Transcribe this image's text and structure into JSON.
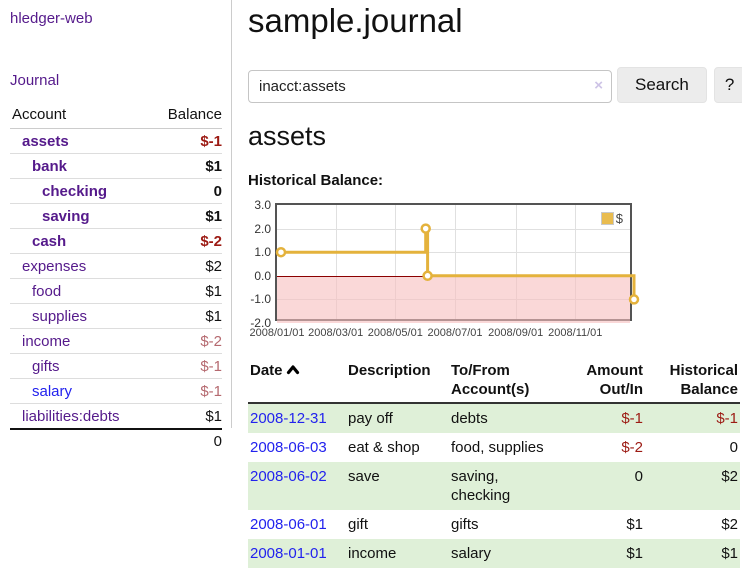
{
  "appearance": {
    "link_purple": "#551a8b",
    "link_blue": "#2222ee",
    "negative_strong": "#9c1a13",
    "negative_soft": "#b5696f",
    "row_stripe_green": "#dff0d8",
    "series_gold": "#e4b23c",
    "negative_region_pink": "#f7bebe",
    "zero_line_red": "#8b0000"
  },
  "sidebar": {
    "brand": "hledger-web",
    "journal_label": "Journal",
    "accounts_table": {
      "headers": [
        "Account",
        "Balance"
      ],
      "rows": [
        {
          "name": "assets",
          "indent": 1,
          "balance": "$-1",
          "bold": true,
          "balance_tone": "neg-strong",
          "link": "purple"
        },
        {
          "name": "bank",
          "indent": 2,
          "balance": "$1",
          "bold": true,
          "balance_tone": "normal",
          "link": "purple"
        },
        {
          "name": "checking",
          "indent": 3,
          "balance": "0",
          "bold": true,
          "balance_tone": "normal",
          "link": "purple"
        },
        {
          "name": "saving",
          "indent": 3,
          "balance": "$1",
          "bold": true,
          "balance_tone": "normal",
          "link": "purple"
        },
        {
          "name": "cash",
          "indent": 2,
          "balance": "$-2",
          "bold": true,
          "balance_tone": "neg-strong",
          "link": "purple"
        },
        {
          "name": "expenses",
          "indent": 1,
          "balance": "$2",
          "bold": false,
          "balance_tone": "normal",
          "link": "purple"
        },
        {
          "name": "food",
          "indent": 2,
          "balance": "$1",
          "bold": false,
          "balance_tone": "normal",
          "link": "purple"
        },
        {
          "name": "supplies",
          "indent": 2,
          "balance": "$1",
          "bold": false,
          "balance_tone": "normal",
          "link": "purple"
        },
        {
          "name": "income",
          "indent": 1,
          "balance": "$-2",
          "bold": false,
          "balance_tone": "neg-soft",
          "link": "purple"
        },
        {
          "name": "gifts",
          "indent": 2,
          "balance": "$-1",
          "bold": false,
          "balance_tone": "neg-soft",
          "link": "purple"
        },
        {
          "name": "salary",
          "indent": 2,
          "balance": "$-1",
          "bold": false,
          "balance_tone": "neg-soft",
          "link": "blue"
        },
        {
          "name": "liabilities:debts",
          "indent": 1,
          "balance": "$1",
          "bold": false,
          "balance_tone": "normal",
          "link": "purple"
        }
      ],
      "total": "0"
    }
  },
  "header": {
    "title": "sample.journal"
  },
  "search": {
    "value": "inacct:assets",
    "clear_icon": "×",
    "button_label": "Search",
    "help_label": "?"
  },
  "account_page": {
    "heading": "assets",
    "chart_label": "Historical Balance:"
  },
  "chart_data": {
    "type": "line",
    "step": true,
    "title": "Historical Balance",
    "series": [
      {
        "name": "$",
        "color": "#e4b23c",
        "points": [
          [
            "2008-01-01",
            1.0
          ],
          [
            "2008-06-01",
            2.0
          ],
          [
            "2008-06-03",
            0.0
          ],
          [
            "2008-12-31",
            -1.0
          ]
        ]
      }
    ],
    "ylim": [
      -2.0,
      3.0
    ],
    "yticks": [
      3.0,
      2.0,
      1.0,
      0.0,
      -1.0,
      -2.0
    ],
    "xticks": [
      "2008/01/01",
      "2008/03/01",
      "2008/05/01",
      "2008/07/01",
      "2008/09/01",
      "2008/11/01"
    ],
    "xrange": [
      "2008-01-01",
      "2008-12-31"
    ],
    "legend": [
      "$"
    ],
    "legend_position": "top-right",
    "grid": true,
    "negative_region_shaded": true
  },
  "register": {
    "columns": [
      "Date",
      "Description",
      "To/From Account(s)",
      "Amount Out/In",
      "Historical Balance"
    ],
    "sort": {
      "column": "Date",
      "direction": "asc"
    },
    "rows": [
      {
        "date": "2008-12-31",
        "description": "pay off",
        "accounts": [
          "debts"
        ],
        "amount": "$-1",
        "amount_neg": true,
        "balance": "$-1",
        "balance_neg": true
      },
      {
        "date": "2008-06-03",
        "description": "eat & shop",
        "accounts": [
          "food, supplies"
        ],
        "amount": "$-2",
        "amount_neg": true,
        "balance": "0",
        "balance_neg": false
      },
      {
        "date": "2008-06-02",
        "description": "save",
        "accounts": [
          "saving,",
          "checking"
        ],
        "amount": "0",
        "amount_neg": false,
        "balance": "$2",
        "balance_neg": false
      },
      {
        "date": "2008-06-01",
        "description": "gift",
        "accounts": [
          "gifts"
        ],
        "amount": "$1",
        "amount_neg": false,
        "balance": "$2",
        "balance_neg": false
      },
      {
        "date": "2008-01-01",
        "description": "income",
        "accounts": [
          "salary"
        ],
        "amount": "$1",
        "amount_neg": false,
        "balance": "$1",
        "balance_neg": false
      }
    ]
  }
}
